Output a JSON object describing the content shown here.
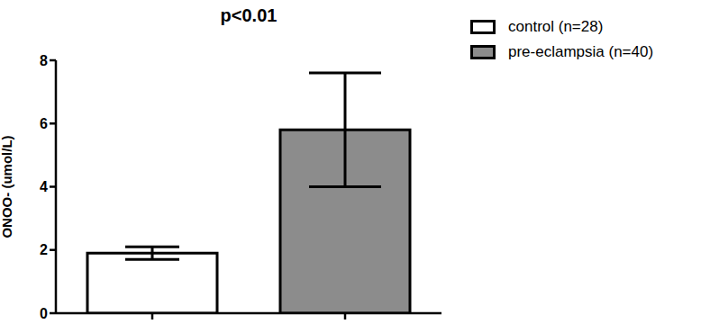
{
  "chart_data": {
    "type": "bar",
    "title": "p<0.01",
    "y_label": "ONOO- (umol/L)",
    "categories": [
      null,
      null
    ],
    "series": [
      {
        "name": "control (n=28)",
        "color": "#ffffff",
        "values": [
          1.9,
          null
        ],
        "errors": [
          0.2,
          null
        ]
      },
      {
        "name": "pre-eclampsia (n=40)",
        "color": "#8c8c8c",
        "values": [
          null,
          5.8
        ],
        "errors": [
          null,
          1.8
        ]
      }
    ],
    "ylim": [
      0,
      8
    ],
    "yticks": [
      0,
      2,
      4,
      6,
      8
    ],
    "legend": "right"
  }
}
